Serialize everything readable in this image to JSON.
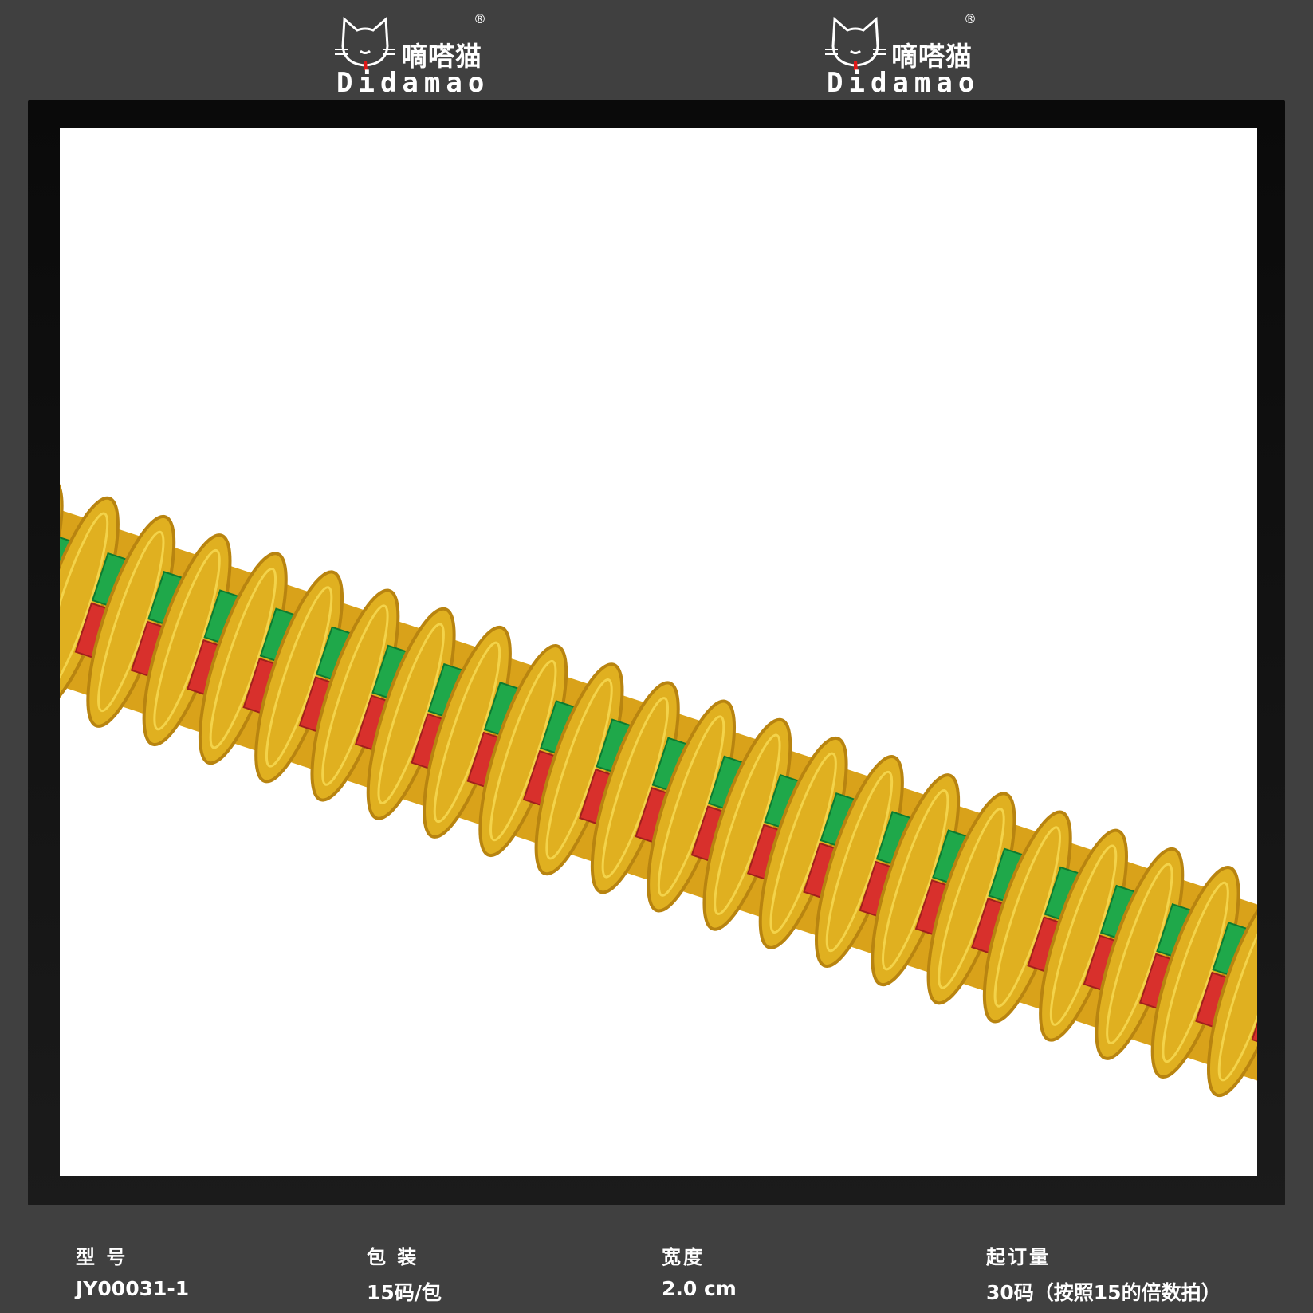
{
  "brand": {
    "name_cn": "嘀嗒猫",
    "name_en": "Didamao",
    "registered": "®"
  },
  "product_image": {
    "description_colors": {
      "gold": "#e0b020",
      "green": "#1fa84a",
      "red": "#d8302c"
    }
  },
  "specs": [
    {
      "label": "型 号",
      "value": "JY00031-1"
    },
    {
      "label": "包 装",
      "value": "15码/包"
    },
    {
      "label": "宽度",
      "value": "2.0 cm"
    },
    {
      "label": "起订量",
      "value": "30码（按照15的倍数拍）"
    }
  ],
  "colors": {
    "background": "#404040",
    "frame": "#111111",
    "text": "#ffffff"
  }
}
